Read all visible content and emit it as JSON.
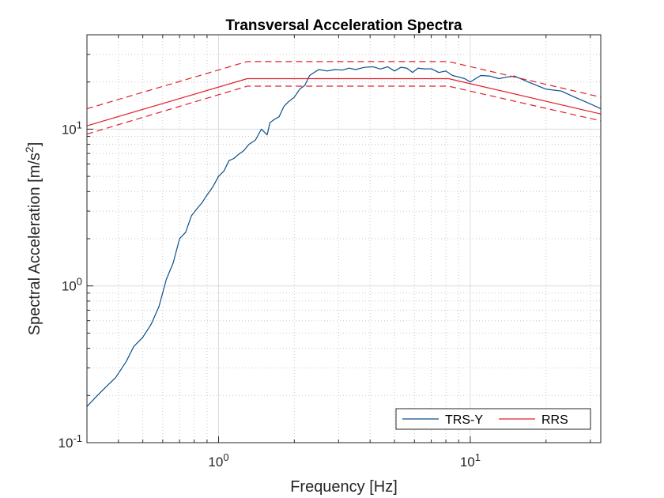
{
  "chart_data": {
    "type": "line",
    "title": "Transversal Acceleration Spectra",
    "xlabel": "Frequency [Hz]",
    "ylabel": "Spectral Acceleration [m/s",
    "ylabel_sup": "2",
    "ylabel_end": "]",
    "xscale": "log",
    "yscale": "log",
    "xlim": [
      0.3,
      33
    ],
    "ylim": [
      0.1,
      40
    ],
    "grid": true,
    "legend_position": "bottom-right",
    "x_ticks": [
      {
        "value": 1,
        "base": "10",
        "exp": "0"
      },
      {
        "value": 10,
        "base": "10",
        "exp": "1"
      }
    ],
    "y_ticks": [
      {
        "value": 0.1,
        "base": "10",
        "exp": "-1"
      },
      {
        "value": 1,
        "base": "10",
        "exp": "0"
      },
      {
        "value": 10,
        "base": "10",
        "exp": "1"
      }
    ],
    "series": [
      {
        "name": "TRS-Y",
        "color": "#0b4f8a",
        "dash": "solid",
        "in_legend": true,
        "x": [
          0.3,
          0.33,
          0.36,
          0.39,
          0.43,
          0.46,
          0.5,
          0.54,
          0.58,
          0.62,
          0.66,
          0.7,
          0.74,
          0.78,
          0.82,
          0.86,
          0.9,
          0.95,
          1.0,
          1.05,
          1.1,
          1.15,
          1.2,
          1.26,
          1.32,
          1.4,
          1.48,
          1.56,
          1.6,
          1.66,
          1.74,
          1.82,
          1.9,
          2.0,
          2.1,
          2.2,
          2.3,
          2.4,
          2.5,
          2.7,
          2.9,
          3.1,
          3.3,
          3.5,
          3.8,
          4.1,
          4.4,
          4.7,
          5.0,
          5.3,
          5.6,
          5.9,
          6.2,
          6.6,
          7.0,
          7.5,
          8.0,
          8.5,
          9.0,
          9.5,
          10.0,
          11.0,
          12.0,
          13.0,
          14.0,
          15.0,
          17.0,
          20.0,
          23.0,
          26.0,
          30.0,
          33.0
        ],
        "y": [
          0.17,
          0.2,
          0.23,
          0.26,
          0.33,
          0.41,
          0.47,
          0.57,
          0.74,
          1.1,
          1.4,
          2.0,
          2.2,
          2.8,
          3.1,
          3.4,
          3.8,
          4.3,
          5.0,
          5.4,
          6.3,
          6.5,
          6.9,
          7.3,
          8.0,
          8.5,
          10.0,
          9.2,
          11.0,
          11.5,
          12.0,
          14.0,
          15.0,
          16.0,
          18.0,
          19.0,
          22.0,
          23.0,
          24.0,
          23.5,
          24.0,
          23.8,
          24.5,
          24.0,
          24.8,
          25.0,
          24.2,
          25.0,
          23.5,
          24.8,
          24.5,
          23.0,
          24.5,
          24.2,
          24.3,
          23.0,
          23.5,
          22.0,
          21.5,
          21.0,
          20.0,
          22.0,
          21.8,
          21.0,
          21.5,
          21.8,
          20.0,
          18.0,
          17.5,
          16.0,
          14.5,
          13.5
        ]
      },
      {
        "name": "RRS",
        "color": "#e0202a",
        "dash": "solid",
        "in_legend": true,
        "x": [
          0.3,
          1.3,
          8.2,
          33.0
        ],
        "y": [
          10.5,
          21.0,
          21.0,
          12.5
        ]
      },
      {
        "name": "",
        "color": "#e0202a",
        "dash": "dashed",
        "in_legend": false,
        "x": [
          0.3,
          1.3,
          8.2,
          33.0
        ],
        "y": [
          13.5,
          27.0,
          27.0,
          16.0
        ]
      },
      {
        "name": "",
        "color": "#e0202a",
        "dash": "dashed",
        "in_legend": false,
        "x": [
          0.3,
          1.3,
          8.2,
          33.0
        ],
        "y": [
          9.3,
          18.8,
          18.8,
          11.3
        ]
      }
    ]
  }
}
